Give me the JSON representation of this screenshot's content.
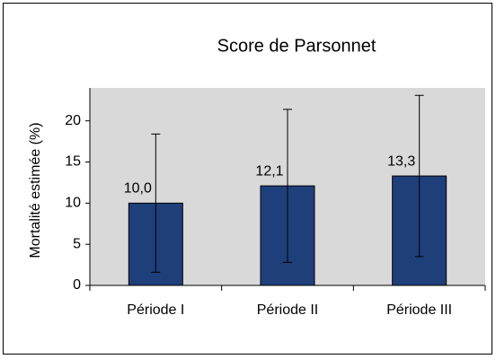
{
  "chart_data": {
    "type": "bar",
    "title": "Score de Parsonnet",
    "y_label": "Mortalité estimée (%)",
    "categories": [
      "Période I",
      "Période II",
      "Période III"
    ],
    "values": [
      10.0,
      12.1,
      13.3
    ],
    "value_labels": [
      "10,0",
      "12,1",
      "13,3"
    ],
    "errors": [
      8.4,
      9.3,
      9.8
    ],
    "color": "#1f3f7a",
    "plot_background": "#d9d9d9",
    "ylim": [
      0,
      24
    ],
    "yticks": [
      0,
      5,
      10,
      15,
      20
    ]
  }
}
